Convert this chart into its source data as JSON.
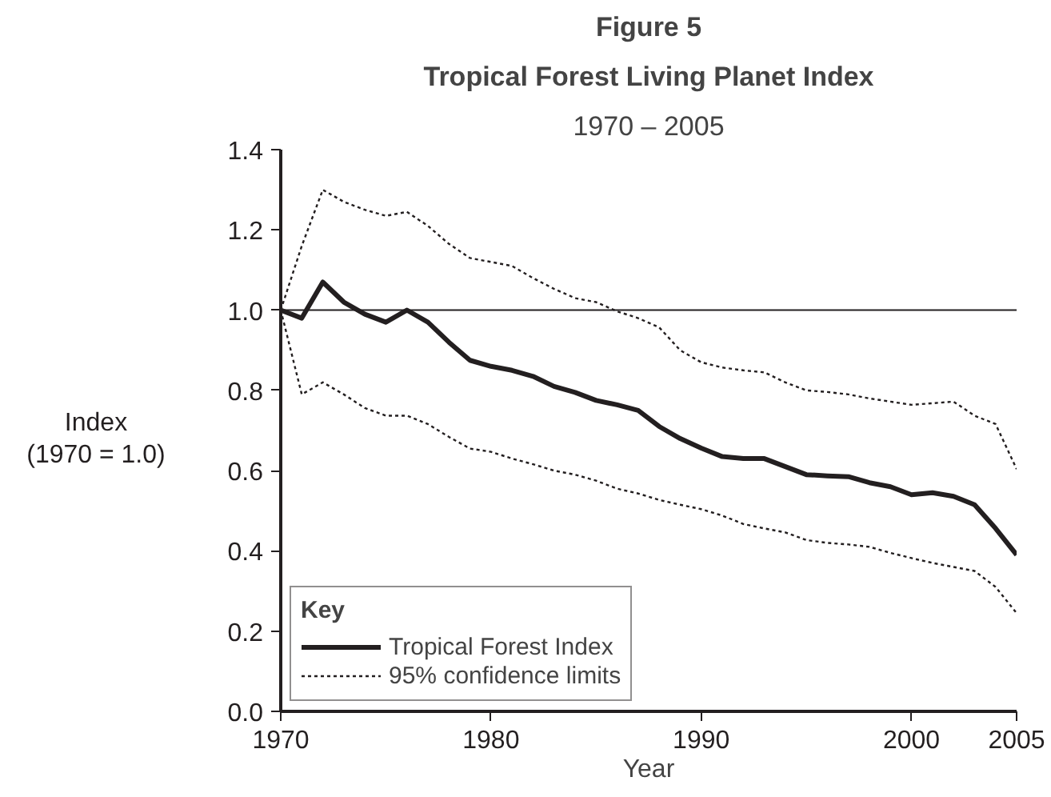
{
  "chart_data": {
    "type": "line",
    "title": "Tropical Forest Living Planet Index",
    "subtitle": "1970 – 2005",
    "annotations": [
      "Figure 5"
    ],
    "xlabel": "Year",
    "ylabel": "Index\n(1970 = 1.0)",
    "legend_title": "Key",
    "x": [
      1970,
      1971,
      1972,
      1973,
      1974,
      1975,
      1976,
      1977,
      1978,
      1979,
      1980,
      1981,
      1982,
      1983,
      1984,
      1985,
      1986,
      1987,
      1988,
      1989,
      1990,
      1991,
      1992,
      1993,
      1994,
      1995,
      1996,
      1997,
      1998,
      1999,
      2000,
      2001,
      2002,
      2003,
      2004,
      2005
    ],
    "series": [
      {
        "name": "Tropical Forest Index",
        "color": "#231f20",
        "line_style": "solid",
        "values": [
          1.0,
          0.98,
          1.07,
          1.02,
          0.99,
          0.97,
          1.0,
          0.97,
          0.92,
          0.875,
          0.86,
          0.85,
          0.835,
          0.81,
          0.795,
          0.775,
          0.764,
          0.75,
          0.71,
          0.68,
          0.656,
          0.635,
          0.63,
          0.63,
          0.61,
          0.59,
          0.587,
          0.585,
          0.57,
          0.56,
          0.54,
          0.545,
          0.536,
          0.515,
          0.456,
          0.39
        ]
      },
      {
        "name": "95% confidence limits",
        "color": "#231f20",
        "line_style": "dotted",
        "values": [
          1.0,
          1.16,
          1.3,
          1.27,
          1.25,
          1.235,
          1.245,
          1.21,
          1.165,
          1.13,
          1.12,
          1.11,
          1.08,
          1.053,
          1.03,
          1.02,
          0.997,
          0.98,
          0.957,
          0.9,
          0.87,
          0.857,
          0.85,
          0.845,
          0.82,
          0.8,
          0.796,
          0.79,
          0.78,
          0.772,
          0.764,
          0.768,
          0.772,
          0.737,
          0.716,
          0.604
        ]
      },
      {
        "color": "#231f20",
        "line_style": "dotted",
        "values": [
          1.0,
          0.79,
          0.82,
          0.79,
          0.756,
          0.737,
          0.737,
          0.716,
          0.684,
          0.655,
          0.647,
          0.63,
          0.616,
          0.6,
          0.59,
          0.575,
          0.555,
          0.543,
          0.527,
          0.515,
          0.504,
          0.488,
          0.467,
          0.456,
          0.446,
          0.427,
          0.42,
          0.416,
          0.41,
          0.395,
          0.382,
          0.37,
          0.36,
          0.35,
          0.31,
          0.245
        ]
      }
    ],
    "ref_lines": [
      {
        "axis": "y",
        "value": 1.0,
        "color": "#231f20"
      }
    ],
    "xlim": [
      1970,
      2005
    ],
    "ylim": [
      0,
      1.4
    ],
    "xticks": [
      1970,
      1980,
      1990,
      2000,
      2005
    ],
    "yticks": [
      {
        "value": 0,
        "label": "0.0"
      },
      {
        "value": 0.2,
        "label": "0.2"
      },
      {
        "value": 0.4,
        "label": "0.4"
      },
      {
        "value": 0.6,
        "label": "0.6"
      },
      {
        "value": 0.8,
        "label": "0.8"
      },
      {
        "value": 1.0,
        "label": "1.0"
      },
      {
        "value": 1.2,
        "label": "1.2"
      },
      {
        "value": 1.4,
        "label": "1.4"
      }
    ],
    "grid": false,
    "legend": "bottom left",
    "marker": "none"
  }
}
